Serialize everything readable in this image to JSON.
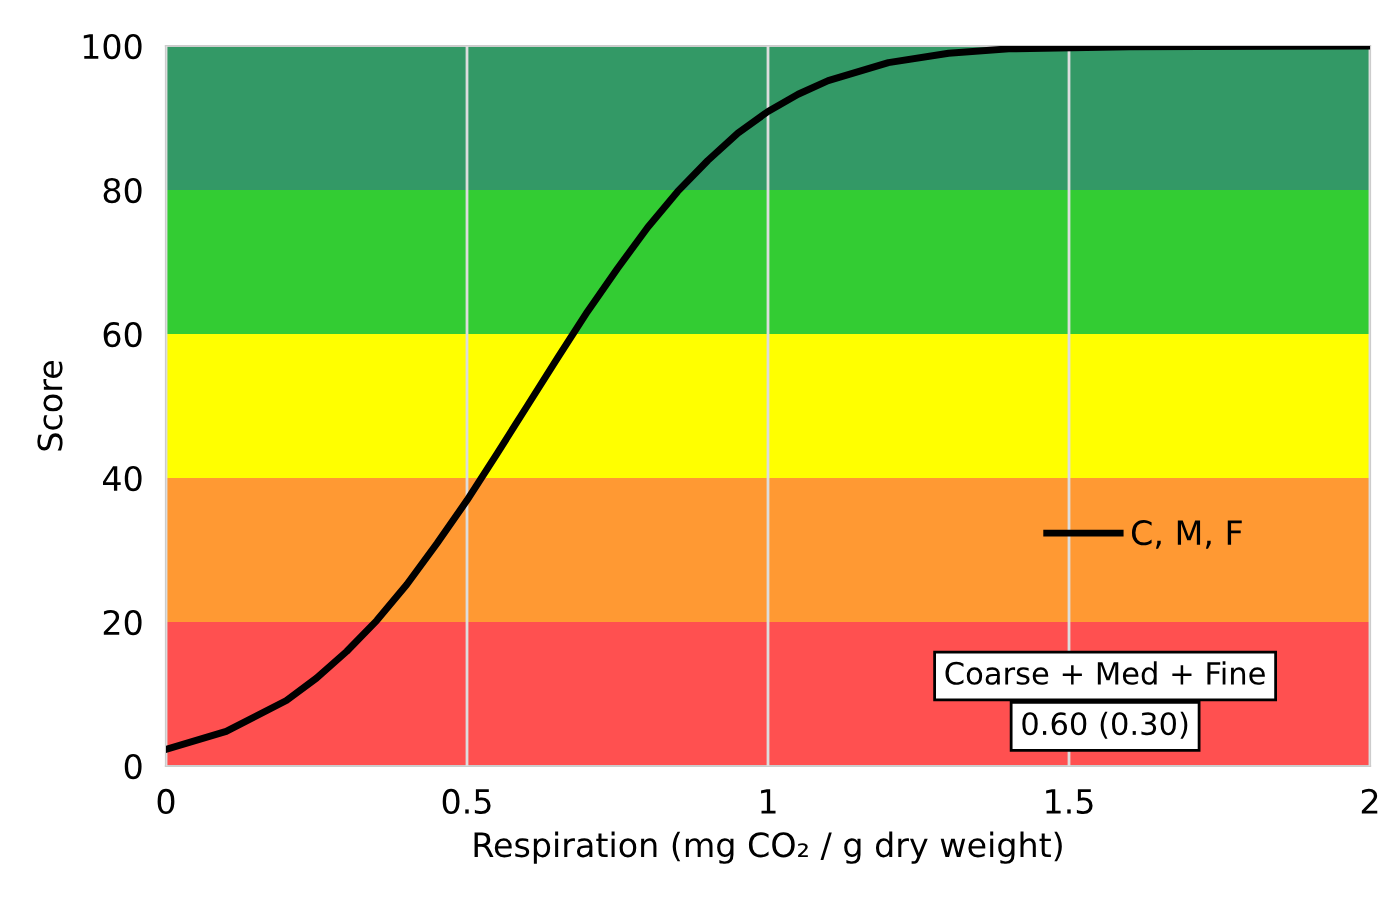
{
  "chart_data": {
    "type": "line",
    "xlabel": "Respiration (mg CO₂ / g dry weight)",
    "ylabel": "Score",
    "series": [
      {
        "name": "C, M, F",
        "color": "#000000",
        "x": [
          0,
          0.1,
          0.2,
          0.25,
          0.3,
          0.35,
          0.4,
          0.45,
          0.5,
          0.55,
          0.6,
          0.65,
          0.7,
          0.75,
          0.8,
          0.85,
          0.9,
          0.95,
          1.0,
          1.05,
          1.1,
          1.2,
          1.3,
          1.4,
          1.6,
          2.0
        ],
        "values": [
          2.3,
          4.8,
          9.1,
          12.2,
          15.9,
          20.2,
          25.2,
          30.9,
          36.9,
          43.4,
          50,
          56.6,
          63.1,
          69.1,
          74.8,
          79.8,
          84.1,
          87.9,
          90.9,
          93.3,
          95.2,
          97.7,
          99.0,
          99.6,
          99.9,
          100
        ]
      }
    ],
    "xlim": [
      0,
      2
    ],
    "xticks": [
      0,
      0.5,
      1,
      1.5,
      2
    ],
    "ylim": [
      0,
      100
    ],
    "yticks": [
      0,
      20,
      40,
      60,
      80,
      100
    ],
    "bands": [
      {
        "axis": "y",
        "from": 0,
        "to": 20,
        "color": "#ff5050"
      },
      {
        "axis": "y",
        "from": 20,
        "to": 40,
        "color": "#ff9933"
      },
      {
        "axis": "y",
        "from": 40,
        "to": 60,
        "color": "#ffff00"
      },
      {
        "axis": "y",
        "from": 60,
        "to": 80,
        "color": "#33cc33"
      },
      {
        "axis": "y",
        "from": 80,
        "to": 100,
        "color": "#339966"
      }
    ],
    "annotations": [
      "Coarse + Med + Fine",
      "0.60 (0.30)"
    ],
    "grid": "x",
    "legend": "right",
    "marker": "none",
    "line_style": "solid"
  }
}
